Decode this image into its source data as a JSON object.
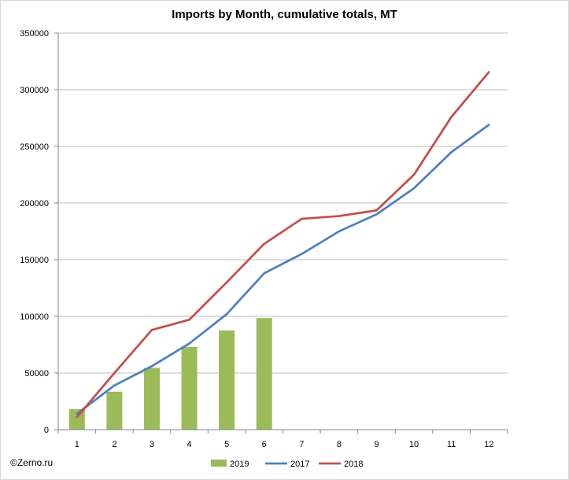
{
  "chart_data": {
    "type": "bar+line",
    "title": "Imports by Month, cumulative totals, MT",
    "xlabel": "",
    "ylabel": "",
    "categories": [
      "1",
      "2",
      "3",
      "4",
      "5",
      "6",
      "7",
      "8",
      "9",
      "10",
      "11",
      "12"
    ],
    "ylim": [
      0,
      350000
    ],
    "yticks": [
      0,
      50000,
      100000,
      150000,
      200000,
      250000,
      300000,
      350000
    ],
    "ytick_labels": [
      "0",
      "50000",
      "100000",
      "150000",
      "200000",
      "250000",
      "300000",
      "350000"
    ],
    "grid": "horizontal",
    "legend_position": "bottom",
    "series": [
      {
        "name": "2019",
        "kind": "bar",
        "color": "#9bbb59",
        "values": [
          18000,
          33500,
          54500,
          73000,
          87500,
          98500,
          null,
          null,
          null,
          null,
          null,
          null
        ]
      },
      {
        "name": "2017",
        "kind": "line",
        "color": "#4f81bd",
        "values": [
          14000,
          39000,
          56000,
          76000,
          102000,
          138000,
          155000,
          175000,
          190000,
          213000,
          245000,
          269000
        ]
      },
      {
        "name": "2018",
        "kind": "line",
        "color": "#c0504d",
        "values": [
          11000,
          50000,
          88000,
          97000,
          130000,
          164000,
          186000,
          188500,
          193500,
          225000,
          276000,
          315500
        ]
      }
    ]
  },
  "footer": {
    "copyright": "©Zerno.ru"
  }
}
